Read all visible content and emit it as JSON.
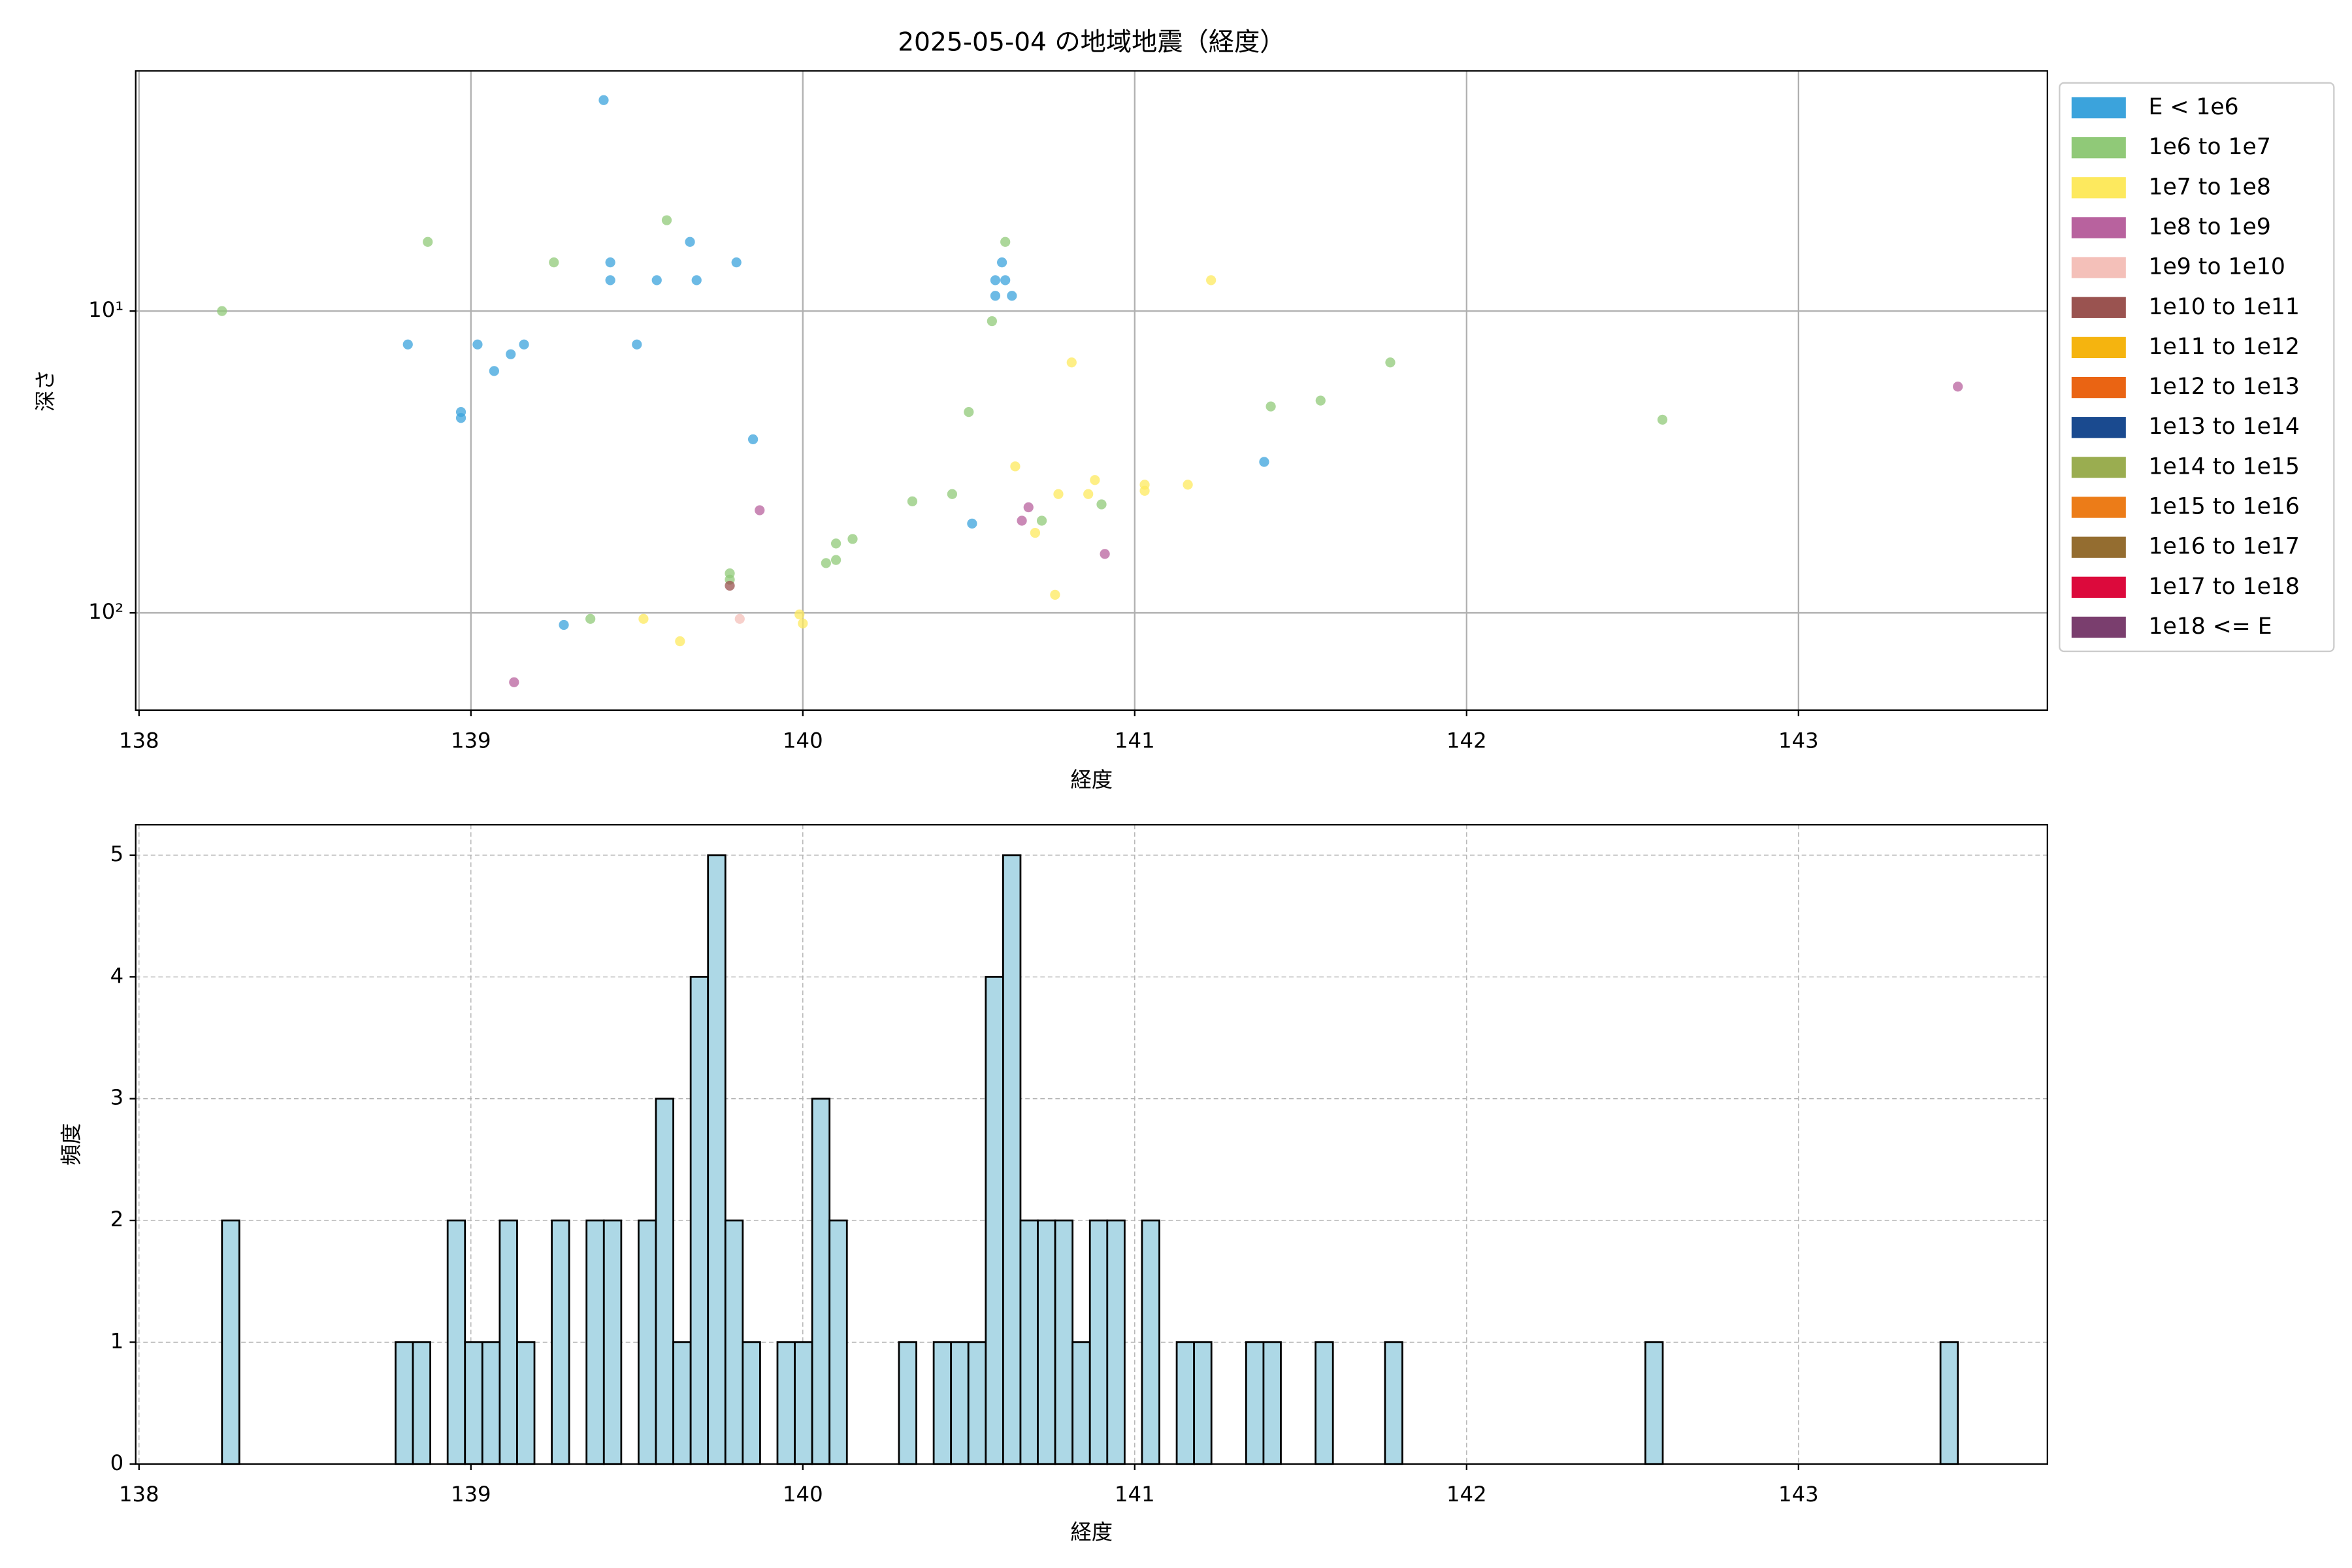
{
  "chart_data": [
    {
      "type": "scatter",
      "title": "2025-05-04 の地域地震（経度）",
      "xlabel": "経度",
      "ylabel": "深さ",
      "xlim": [
        137.99,
        143.75
      ],
      "xticks": [
        138,
        139,
        140,
        141,
        142,
        143
      ],
      "ylim": [
        210,
        1.6
      ],
      "yscale": "log",
      "yticks": [
        {
          "value": 10,
          "label": "10¹"
        },
        {
          "value": 100,
          "label": "10²"
        }
      ],
      "grid": true,
      "legend": "outside-right",
      "series": [
        {
          "name": "E < 1e6",
          "color": "#3ba3dc",
          "x": [
            139.4,
            139.42,
            139.42,
            139.56,
            139.66,
            139.68,
            139.8,
            138.81,
            139.02,
            139.12,
            139.16,
            139.07,
            138.97,
            138.97,
            139.5,
            139.85,
            139.28,
            140.58,
            140.6,
            140.58,
            140.61,
            140.63,
            140.51,
            141.39
          ],
          "values": [
            2.0,
            6.9,
            7.9,
            7.9,
            5.9,
            7.9,
            6.9,
            12.9,
            12.9,
            13.9,
            12.9,
            15.8,
            21.6,
            22.6,
            12.9,
            26.6,
            109.6,
            7.9,
            6.9,
            8.9,
            7.9,
            8.9,
            50.6,
            31.6
          ]
        },
        {
          "name": "1e6 to 1e7",
          "color": "#90c978",
          "x": [
            138.25,
            138.87,
            139.25,
            139.59,
            140.61,
            140.57,
            140.5,
            140.33,
            140.45,
            140.72,
            140.9,
            141.41,
            141.56,
            141.77,
            142.59,
            140.07,
            140.1,
            140.1,
            140.15,
            139.78,
            139.78,
            139.36
          ],
          "values": [
            10,
            5.9,
            6.9,
            5.0,
            5.9,
            10.8,
            21.6,
            42.7,
            40.4,
            49.5,
            43.7,
            20.7,
            19.8,
            14.8,
            22.9,
            68.4,
            58.9,
            66.8,
            56.9,
            74.0,
            77.6,
            104.7
          ]
        },
        {
          "name": "1e7 to 1e8",
          "color": "#fde95e",
          "x": [
            141.23,
            140.81,
            140.64,
            140.77,
            140.86,
            140.88,
            141.03,
            141.03,
            141.16,
            140.7,
            140.76,
            139.52,
            139.63,
            139.99,
            140.0
          ],
          "values": [
            7.9,
            14.8,
            32.7,
            40.4,
            40.4,
            36.3,
            37.6,
            39.4,
            37.6,
            54.3,
            87.1,
            104.7,
            124.2,
            101.2,
            108.4
          ]
        },
        {
          "name": "1e8 to 1e9",
          "color": "#b8629e",
          "x": [
            139.87,
            140.68,
            140.66,
            140.91,
            139.13,
            143.48
          ],
          "values": [
            45.7,
            44.7,
            49.5,
            63.8,
            169.8,
            17.8
          ]
        },
        {
          "name": "1e9 to 1e10",
          "color": "#f4c0b9",
          "x": [
            139.81
          ],
          "values": [
            104.7
          ]
        },
        {
          "name": "1e10 to 1e11",
          "color": "#9a5350",
          "x": [
            139.78
          ],
          "values": [
            81.3
          ]
        },
        {
          "name": "1e11 to 1e12",
          "color": "#f5b40f",
          "x": [],
          "values": []
        },
        {
          "name": "1e12 to 1e13",
          "color": "#ea6413",
          "x": [],
          "values": []
        },
        {
          "name": "1e13 to 1e14",
          "color": "#1a4a8f",
          "x": [],
          "values": []
        },
        {
          "name": "1e14 to 1e15",
          "color": "#9aad50",
          "x": [],
          "values": []
        },
        {
          "name": "1e15 to 1e16",
          "color": "#ec7c18",
          "x": [],
          "values": []
        },
        {
          "name": "1e16 to 1e17",
          "color": "#946d30",
          "x": [],
          "values": []
        },
        {
          "name": "1e17 to 1e18",
          "color": "#dc0a3c",
          "x": [],
          "values": []
        },
        {
          "name": "1e18 <= E",
          "color": "#7a3e6e",
          "x": [],
          "values": []
        }
      ]
    },
    {
      "type": "histogram",
      "xlabel": "経度",
      "ylabel": "頻度",
      "color": "#add8e6",
      "edgecolor": "#000000",
      "xlim": [
        137.99,
        143.75
      ],
      "xticks": [
        138,
        139,
        140,
        141,
        142,
        143
      ],
      "ylim": [
        0,
        5.25
      ],
      "yticks": [
        0,
        1,
        2,
        3,
        4,
        5
      ],
      "grid": true,
      "bins": [
        138.25,
        138.3023,
        138.3546,
        138.4069,
        138.4592,
        138.5115,
        138.5638,
        138.6161,
        138.6684,
        138.7207,
        138.773,
        138.8253,
        138.8776,
        138.9299,
        138.9822,
        139.0345,
        139.0868,
        139.1391,
        139.1914,
        139.2437,
        139.296,
        139.3483,
        139.4006,
        139.4529,
        139.5052,
        139.5575,
        139.6098,
        139.6621,
        139.7144,
        139.7667,
        139.819,
        139.8713,
        139.9236,
        139.9759,
        140.0282,
        140.0805,
        140.1328,
        140.1851,
        140.2374,
        140.2897,
        140.342,
        140.3943,
        140.4466,
        140.4989,
        140.5512,
        140.6035,
        140.6558,
        140.7081,
        140.7604,
        140.8127,
        140.865,
        140.9173,
        140.9696,
        141.0219,
        141.0742,
        141.1265,
        141.1788,
        141.2311,
        141.2834,
        141.3357,
        141.388,
        141.4403,
        141.4926,
        141.5449,
        141.5972,
        141.6495,
        141.7018,
        141.7541,
        141.8064,
        141.8587,
        141.911,
        141.9633,
        142.0156,
        142.0679,
        142.1202,
        142.1725,
        142.2248,
        142.2771,
        142.3294,
        142.3817,
        142.434,
        142.4863,
        142.5386,
        142.5909,
        142.6432,
        142.6955,
        142.7478,
        142.8001,
        142.8524,
        142.9047,
        142.957,
        143.0093,
        143.0616,
        143.1139,
        143.1662,
        143.2185,
        143.2708,
        143.3231,
        143.3754,
        143.4277,
        143.48
      ],
      "values": [
        2,
        0,
        0,
        0,
        0,
        0,
        0,
        0,
        0,
        0,
        1,
        1,
        0,
        2,
        1,
        1,
        2,
        1,
        0,
        2,
        0,
        2,
        2,
        0,
        2,
        3,
        1,
        4,
        5,
        2,
        1,
        0,
        1,
        1,
        3,
        2,
        0,
        0,
        0,
        1,
        0,
        1,
        1,
        1,
        4,
        5,
        2,
        2,
        2,
        1,
        2,
        2,
        0,
        2,
        0,
        1,
        1,
        0,
        0,
        1,
        1,
        0,
        0,
        1,
        0,
        0,
        0,
        1,
        0,
        0,
        0,
        0,
        0,
        0,
        0,
        0,
        0,
        0,
        0,
        0,
        0,
        0,
        1,
        0,
        0,
        0,
        0,
        0,
        0,
        0,
        0,
        0,
        0,
        0,
        0,
        0,
        0,
        0,
        0,
        1
      ]
    }
  ]
}
